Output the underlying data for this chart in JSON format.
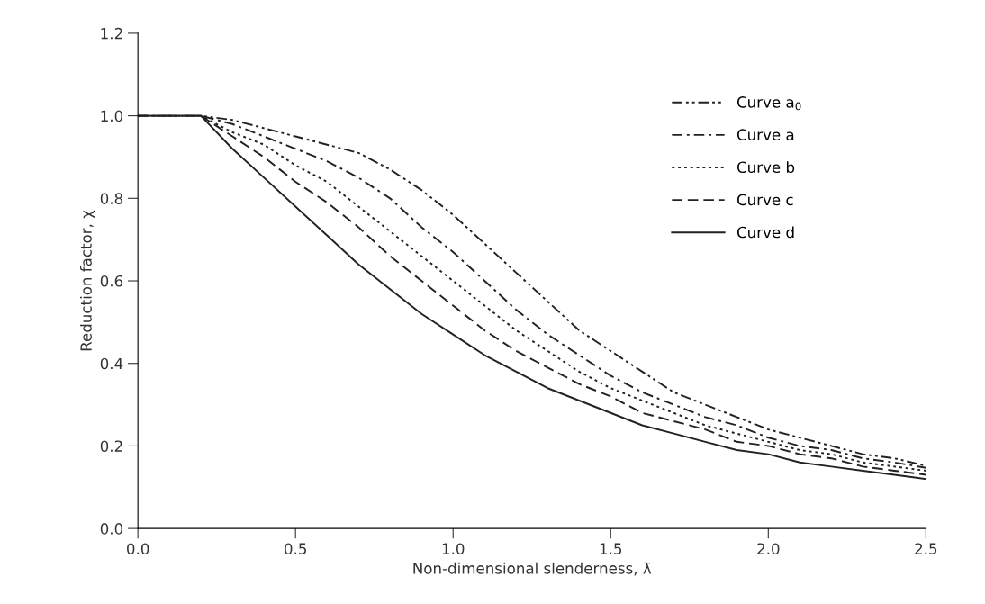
{
  "chart_data": {
    "type": "line",
    "xlabel": "Non-dimensional slenderness, λ̄",
    "ylabel": "Reduction factor, χ",
    "x": [
      0,
      0.2,
      0.3,
      0.4,
      0.5,
      0.6,
      0.7,
      0.8,
      0.9,
      1.0,
      1.1,
      1.2,
      1.3,
      1.4,
      1.5,
      1.6,
      1.7,
      1.8,
      1.9,
      2.0,
      2.1,
      2.2,
      2.3,
      2.4,
      2.5
    ],
    "series": [
      {
        "name": "Curve a$_{0}$",
        "color": "#222222",
        "line_style": "dashdotdot",
        "values": [
          1.0,
          1.0,
          0.99,
          0.97,
          0.95,
          0.93,
          0.91,
          0.87,
          0.82,
          0.76,
          0.69,
          0.62,
          0.55,
          0.48,
          0.43,
          0.38,
          0.33,
          0.3,
          0.27,
          0.24,
          0.22,
          0.2,
          0.18,
          0.17,
          0.152
        ]
      },
      {
        "name": "Curve a",
        "color": "#222222",
        "line_style": "dashdot",
        "values": [
          1.0,
          1.0,
          0.98,
          0.95,
          0.92,
          0.89,
          0.85,
          0.8,
          0.73,
          0.67,
          0.6,
          0.53,
          0.47,
          0.42,
          0.37,
          0.33,
          0.3,
          0.27,
          0.25,
          0.22,
          0.2,
          0.19,
          0.17,
          0.16,
          0.147
        ]
      },
      {
        "name": "Curve b",
        "color": "#222222",
        "line_style": "dotted",
        "values": [
          1.0,
          1.0,
          0.96,
          0.93,
          0.88,
          0.84,
          0.78,
          0.72,
          0.66,
          0.6,
          0.54,
          0.48,
          0.43,
          0.38,
          0.34,
          0.31,
          0.28,
          0.25,
          0.23,
          0.21,
          0.19,
          0.18,
          0.16,
          0.15,
          0.14
        ]
      },
      {
        "name": "Curve c",
        "color": "#222222",
        "line_style": "dashed",
        "values": [
          1.0,
          1.0,
          0.95,
          0.9,
          0.84,
          0.79,
          0.73,
          0.66,
          0.6,
          0.54,
          0.48,
          0.43,
          0.39,
          0.35,
          0.32,
          0.28,
          0.26,
          0.24,
          0.21,
          0.2,
          0.18,
          0.17,
          0.15,
          0.14,
          0.13
        ]
      },
      {
        "name": "Curve d",
        "color": "#222222",
        "line_style": "solid",
        "values": [
          1.0,
          1.0,
          0.92,
          0.85,
          0.78,
          0.71,
          0.64,
          0.58,
          0.52,
          0.47,
          0.42,
          0.38,
          0.34,
          0.31,
          0.28,
          0.25,
          0.23,
          0.21,
          0.19,
          0.18,
          0.16,
          0.15,
          0.14,
          0.13,
          0.12
        ]
      }
    ],
    "xlim": [
      0,
      2.5
    ],
    "xticks": [
      {
        "value": 0,
        "label": "0.0"
      },
      0.5,
      {
        "value": 1,
        "label": "1.0"
      },
      1.5,
      {
        "value": 2,
        "label": "2.0"
      },
      2.5
    ],
    "ylim": [
      0,
      1.2
    ],
    "yticks": [
      {
        "value": 0,
        "label": "0.0"
      },
      0.2,
      0.4,
      0.6,
      0.8,
      {
        "value": 1,
        "label": "1.0"
      },
      1.2
    ],
    "grid": false,
    "legend": "top right"
  }
}
